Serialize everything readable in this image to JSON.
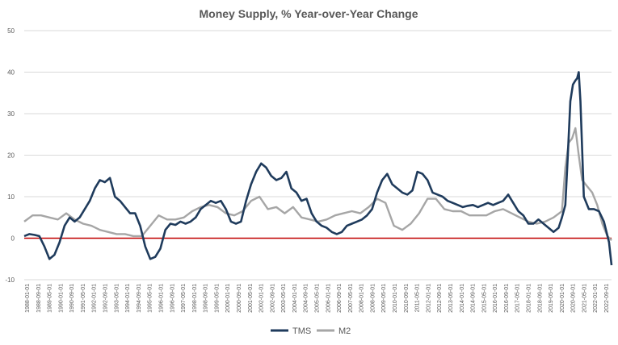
{
  "chart_data": {
    "type": "line",
    "title": "Money Supply, % Year-over-Year Change",
    "xlabel": "",
    "ylabel": "",
    "ylim": [
      -10,
      50
    ],
    "yticks": [
      -10,
      0,
      10,
      20,
      30,
      40,
      50
    ],
    "ytick_labels": [
      "-10",
      "0",
      "10",
      "20",
      "30",
      "40",
      "50"
    ],
    "grid": "horizontal",
    "legend_position": "bottom",
    "x_range": [
      1988.0,
      2022.95
    ],
    "xtick_labels": [
      "1988-01-01",
      "1988-09-01",
      "1989-05-01",
      "1990-01-01",
      "1990-09-01",
      "1991-05-01",
      "1992-01-01",
      "1992-09-01",
      "1993-05-01",
      "1994-01-01",
      "1994-09-01",
      "1995-05-01",
      "1996-01-01",
      "1996-09-01",
      "1997-05-01",
      "1998-01-01",
      "1998-09-01",
      "1999-05-01",
      "2000-01-01",
      "2000-09-01",
      "2001-05-01",
      "2002-01-01",
      "2002-09-01",
      "2003-05-01",
      "2004-01-01",
      "2004-09-01",
      "2005-05-01",
      "2006-01-01",
      "2006-09-01",
      "2007-05-01",
      "2008-01-01",
      "2008-09-01",
      "2009-05-01",
      "2010-01-01",
      "2010-09-01",
      "2011-05-01",
      "2012-01-01",
      "2012-09-01",
      "2013-05-01",
      "2014-01-01",
      "2014-09-01",
      "2015-05-01",
      "2016-01-01",
      "2016-09-01",
      "2017-05-01",
      "2018-01-01",
      "2018-09-01",
      "2019-05-01",
      "2020-01-01",
      "2020-09-01",
      "2021-05-01",
      "2022-01-01",
      "2022-09-01"
    ],
    "reference_line": {
      "y": 0,
      "color": "#c00000"
    },
    "series": [
      {
        "name": "TMS",
        "color": "#1f3b5c",
        "x": [
          1988.0,
          1988.3,
          1988.6,
          1988.9,
          1989.2,
          1989.5,
          1989.8,
          1990.1,
          1990.4,
          1990.7,
          1991.0,
          1991.3,
          1991.6,
          1991.9,
          1992.2,
          1992.5,
          1992.8,
          1993.1,
          1993.4,
          1993.7,
          1994.0,
          1994.3,
          1994.6,
          1994.9,
          1995.2,
          1995.5,
          1995.8,
          1996.1,
          1996.4,
          1996.7,
          1997.0,
          1997.3,
          1997.6,
          1997.9,
          1998.2,
          1998.5,
          1998.8,
          1999.1,
          1999.4,
          1999.7,
          2000.0,
          2000.3,
          2000.6,
          2000.9,
          2001.2,
          2001.5,
          2001.8,
          2002.1,
          2002.4,
          2002.7,
          2003.0,
          2003.3,
          2003.6,
          2003.9,
          2004.2,
          2004.5,
          2004.8,
          2005.1,
          2005.4,
          2005.7,
          2006.0,
          2006.3,
          2006.6,
          2006.9,
          2007.2,
          2007.5,
          2007.8,
          2008.1,
          2008.4,
          2008.7,
          2009.0,
          2009.3,
          2009.6,
          2009.9,
          2010.2,
          2010.5,
          2010.8,
          2011.1,
          2011.4,
          2011.7,
          2012.0,
          2012.3,
          2012.6,
          2012.9,
          2013.2,
          2013.5,
          2013.8,
          2014.1,
          2014.4,
          2014.7,
          2015.0,
          2015.3,
          2015.6,
          2015.9,
          2016.2,
          2016.5,
          2016.8,
          2017.1,
          2017.4,
          2017.7,
          2018.0,
          2018.3,
          2018.6,
          2018.9,
          2019.2,
          2019.5,
          2019.8,
          2020.0,
          2020.2,
          2020.35,
          2020.5,
          2020.65,
          2020.8,
          2020.9,
          2021.0,
          2021.1,
          2021.3,
          2021.6,
          2021.9,
          2022.2,
          2022.5,
          2022.8,
          2022.95
        ],
        "values": [
          0.5,
          1.0,
          0.8,
          0.5,
          -2.0,
          -5.0,
          -4.0,
          -1.0,
          3.0,
          5.0,
          4.0,
          5.0,
          7.0,
          9.0,
          12.0,
          14.0,
          13.5,
          14.5,
          10.0,
          9.0,
          7.5,
          6.0,
          6.0,
          3.0,
          -2.0,
          -5.0,
          -4.5,
          -2.5,
          2.0,
          3.5,
          3.2,
          4.0,
          3.5,
          4.0,
          5.0,
          7.0,
          8.0,
          9.0,
          8.5,
          9.0,
          7.0,
          4.0,
          3.5,
          4.0,
          9.0,
          13.0,
          16.0,
          18.0,
          17.0,
          15.0,
          14.0,
          14.5,
          16.0,
          12.0,
          11.0,
          9.0,
          9.5,
          6.0,
          4.0,
          3.0,
          2.5,
          1.5,
          1.0,
          1.5,
          3.0,
          3.5,
          4.0,
          4.5,
          5.5,
          7.0,
          11.0,
          14.0,
          15.5,
          13.0,
          12.0,
          11.0,
          10.5,
          11.5,
          16.0,
          15.5,
          14.0,
          11.0,
          10.5,
          10.0,
          9.0,
          8.5,
          8.0,
          7.5,
          7.8,
          8.0,
          7.5,
          8.0,
          8.5,
          8.0,
          8.5,
          9.0,
          10.5,
          8.5,
          6.5,
          5.5,
          3.5,
          3.5,
          4.5,
          3.5,
          2.5,
          1.5,
          2.5,
          5.0,
          8.0,
          20.0,
          33.0,
          37.0,
          38.0,
          38.5,
          40.0,
          33.0,
          10.0,
          7.0,
          7.0,
          6.5,
          4.0,
          -1.0,
          -6.5
        ]
      },
      {
        "name": "M2",
        "color": "#a6a6a6",
        "x": [
          1988.0,
          1988.5,
          1989.0,
          1989.5,
          1990.0,
          1990.5,
          1991.0,
          1991.5,
          1992.0,
          1992.5,
          1993.0,
          1993.5,
          1994.0,
          1994.5,
          1995.0,
          1995.5,
          1996.0,
          1996.5,
          1997.0,
          1997.5,
          1998.0,
          1998.5,
          1999.0,
          1999.5,
          2000.0,
          2000.5,
          2001.0,
          2001.5,
          2002.0,
          2002.5,
          2003.0,
          2003.5,
          2004.0,
          2004.5,
          2005.0,
          2005.5,
          2006.0,
          2006.5,
          2007.0,
          2007.5,
          2008.0,
          2008.5,
          2009.0,
          2009.5,
          2010.0,
          2010.5,
          2011.0,
          2011.5,
          2012.0,
          2012.5,
          2013.0,
          2013.5,
          2014.0,
          2014.5,
          2015.0,
          2015.5,
          2016.0,
          2016.5,
          2017.0,
          2017.5,
          2018.0,
          2018.5,
          2019.0,
          2019.5,
          2020.0,
          2020.2,
          2020.4,
          2020.6,
          2020.8,
          2021.0,
          2021.2,
          2021.5,
          2021.8,
          2022.1,
          2022.4,
          2022.7,
          2022.95
        ],
        "values": [
          4.0,
          5.5,
          5.5,
          5.0,
          4.5,
          6.0,
          4.5,
          3.5,
          3.0,
          2.0,
          1.5,
          1.0,
          1.0,
          0.5,
          0.5,
          3.0,
          5.5,
          4.5,
          4.5,
          5.0,
          6.5,
          7.5,
          8.0,
          7.5,
          6.0,
          5.5,
          6.5,
          9.0,
          10.0,
          7.0,
          7.5,
          6.0,
          7.5,
          5.0,
          4.5,
          4.0,
          4.5,
          5.5,
          6.0,
          6.5,
          6.0,
          7.5,
          9.5,
          8.5,
          3.0,
          2.0,
          3.5,
          6.0,
          9.5,
          9.5,
          7.0,
          6.5,
          6.5,
          5.5,
          5.5,
          5.5,
          6.5,
          7.0,
          6.0,
          5.0,
          4.0,
          3.5,
          4.0,
          5.0,
          6.5,
          17.0,
          23.0,
          24.0,
          26.5,
          20.0,
          14.0,
          12.5,
          11.0,
          8.0,
          3.5,
          0.5,
          -0.5
        ]
      }
    ]
  }
}
